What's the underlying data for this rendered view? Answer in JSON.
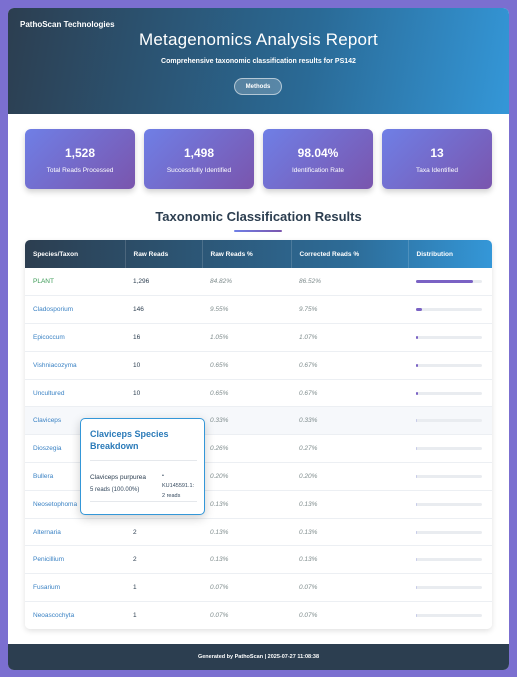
{
  "header": {
    "company": "PathoScan Technologies",
    "title": "Metagenomics Analysis Report",
    "subtitle": "Comprehensive taxonomic classification results for PS142",
    "methods_label": "Methods"
  },
  "stats": [
    {
      "value": "1,528",
      "label": "Total Reads Processed"
    },
    {
      "value": "1,498",
      "label": "Successfully Identified"
    },
    {
      "value": "98.04%",
      "label": "Identification Rate"
    },
    {
      "value": "13",
      "label": "Taxa Identified"
    }
  ],
  "results": {
    "title": "Taxonomic Classification Results",
    "columns": [
      "Species/Taxon",
      "Raw Reads",
      "Raw Reads %",
      "Corrected Reads %",
      "Distribution"
    ],
    "rows": [
      {
        "taxon": "PLANT",
        "raw": "1,296",
        "raw_pct": "84.82%",
        "corr_pct": "86.52%",
        "dist": 0.8652
      },
      {
        "taxon": "Cladosporium",
        "raw": "146",
        "raw_pct": "9.55%",
        "corr_pct": "9.75%",
        "dist": 0.0975
      },
      {
        "taxon": "Epicoccum",
        "raw": "16",
        "raw_pct": "1.05%",
        "corr_pct": "1.07%",
        "dist": 0.0107
      },
      {
        "taxon": "Vishniacozyma",
        "raw": "10",
        "raw_pct": "0.65%",
        "corr_pct": "0.67%",
        "dist": 0.0067
      },
      {
        "taxon": "Uncultured",
        "raw": "10",
        "raw_pct": "0.65%",
        "corr_pct": "0.67%",
        "dist": 0.0067
      },
      {
        "taxon": "Claviceps",
        "raw": "",
        "raw_pct": "0.33%",
        "corr_pct": "0.33%",
        "dist": 0.0033
      },
      {
        "taxon": "Dioszegia",
        "raw": "",
        "raw_pct": "0.26%",
        "corr_pct": "0.27%",
        "dist": 0.0027
      },
      {
        "taxon": "Bullera",
        "raw": "",
        "raw_pct": "0.20%",
        "corr_pct": "0.20%",
        "dist": 0.002
      },
      {
        "taxon": "Neosetophoma",
        "raw": "",
        "raw_pct": "0.13%",
        "corr_pct": "0.13%",
        "dist": 0.0013
      },
      {
        "taxon": "Alternaria",
        "raw": "2",
        "raw_pct": "0.13%",
        "corr_pct": "0.13%",
        "dist": 0.0013
      },
      {
        "taxon": "Penicillium",
        "raw": "2",
        "raw_pct": "0.13%",
        "corr_pct": "0.13%",
        "dist": 0.0013
      },
      {
        "taxon": "Fusarium",
        "raw": "1",
        "raw_pct": "0.07%",
        "corr_pct": "0.07%",
        "dist": 0.0007
      },
      {
        "taxon": "Neoascochyta",
        "raw": "1",
        "raw_pct": "0.07%",
        "corr_pct": "0.07%",
        "dist": 0.0007
      }
    ]
  },
  "tooltip": {
    "title": "Claviceps Species Breakdown",
    "species": "Claviceps purpurea",
    "reads": "5 reads (100.00%)",
    "accession_line1": "KU145591.1:",
    "accession_line2": "2 reads"
  },
  "footer": {
    "text": "Generated by PathoScan | 2025-07-27 11:08:38"
  },
  "colors": {
    "accent_start": "#6f7fe6",
    "accent_end": "#7a55ad",
    "header_dark": "#2c3e50",
    "header_blue": "#3497d8",
    "link_blue": "#3a82c4",
    "plant_green": "#3a9a55"
  }
}
